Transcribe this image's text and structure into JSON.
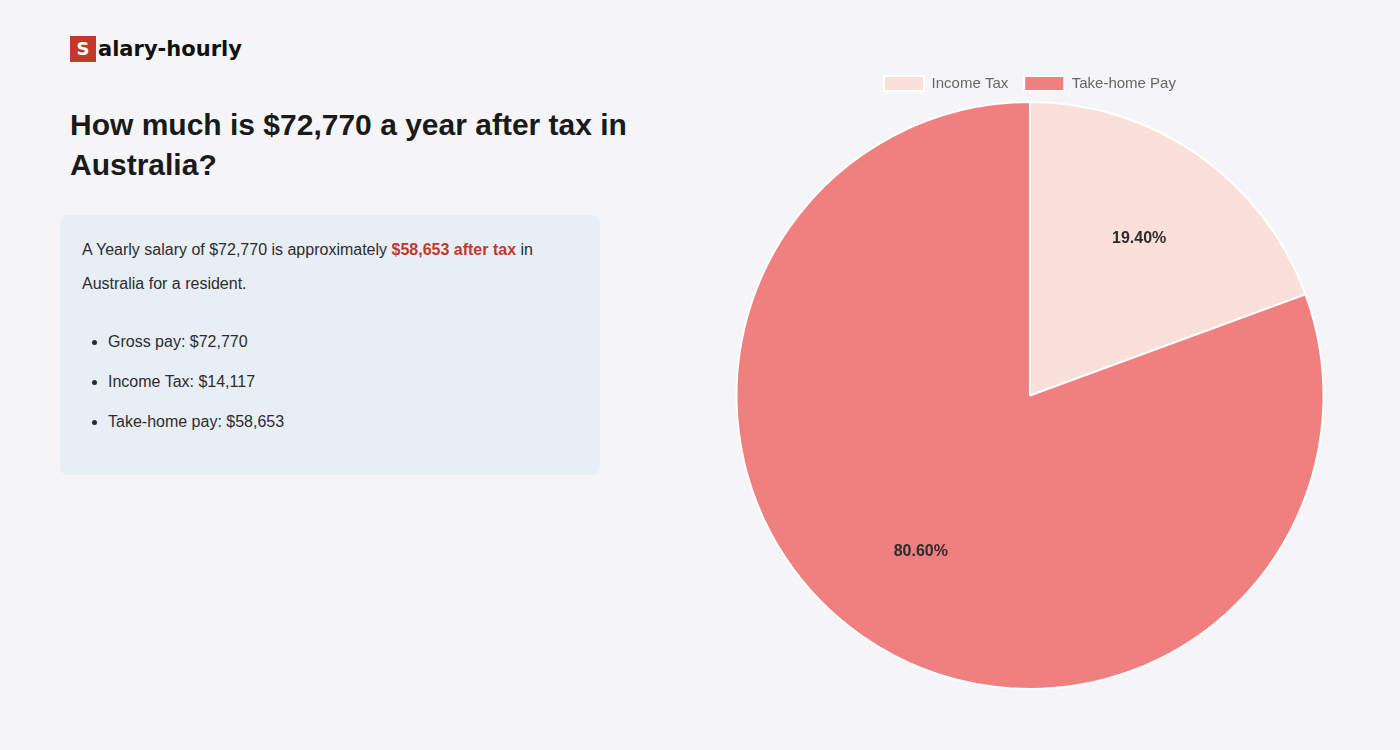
{
  "chart_data": {
    "type": "pie",
    "title": [
      "How much is $72,770 a year after tax in",
      "Australia?"
    ],
    "annotations": [
      [
        {
          "text": "S",
          "color": "#c0392b"
        },
        {
          "text": "alary-hourly"
        }
      ],
      [
        {
          "text": "A Yearly salary of $72,770 is approximately "
        },
        {
          "text": "$58,653 after tax",
          "color": "#c0392b"
        },
        {
          "text": " in"
        }
      ],
      [
        {
          "text": "Australia for a resident."
        }
      ],
      [
        {
          "text": "Gross pay: $72,770"
        }
      ],
      [
        {
          "text": "Income Tax: $14,117"
        }
      ],
      [
        {
          "text": "Take-home pay: $58,653"
        }
      ]
    ],
    "categories": [
      "Income Tax",
      "Take-home Pay"
    ],
    "values": [
      19.4,
      80.6
    ],
    "value_labels": [
      "19.40%",
      "80.60%"
    ],
    "data_labels": true,
    "colors": [
      "#fae0d8",
      "#f08080"
    ],
    "legend": "top"
  }
}
